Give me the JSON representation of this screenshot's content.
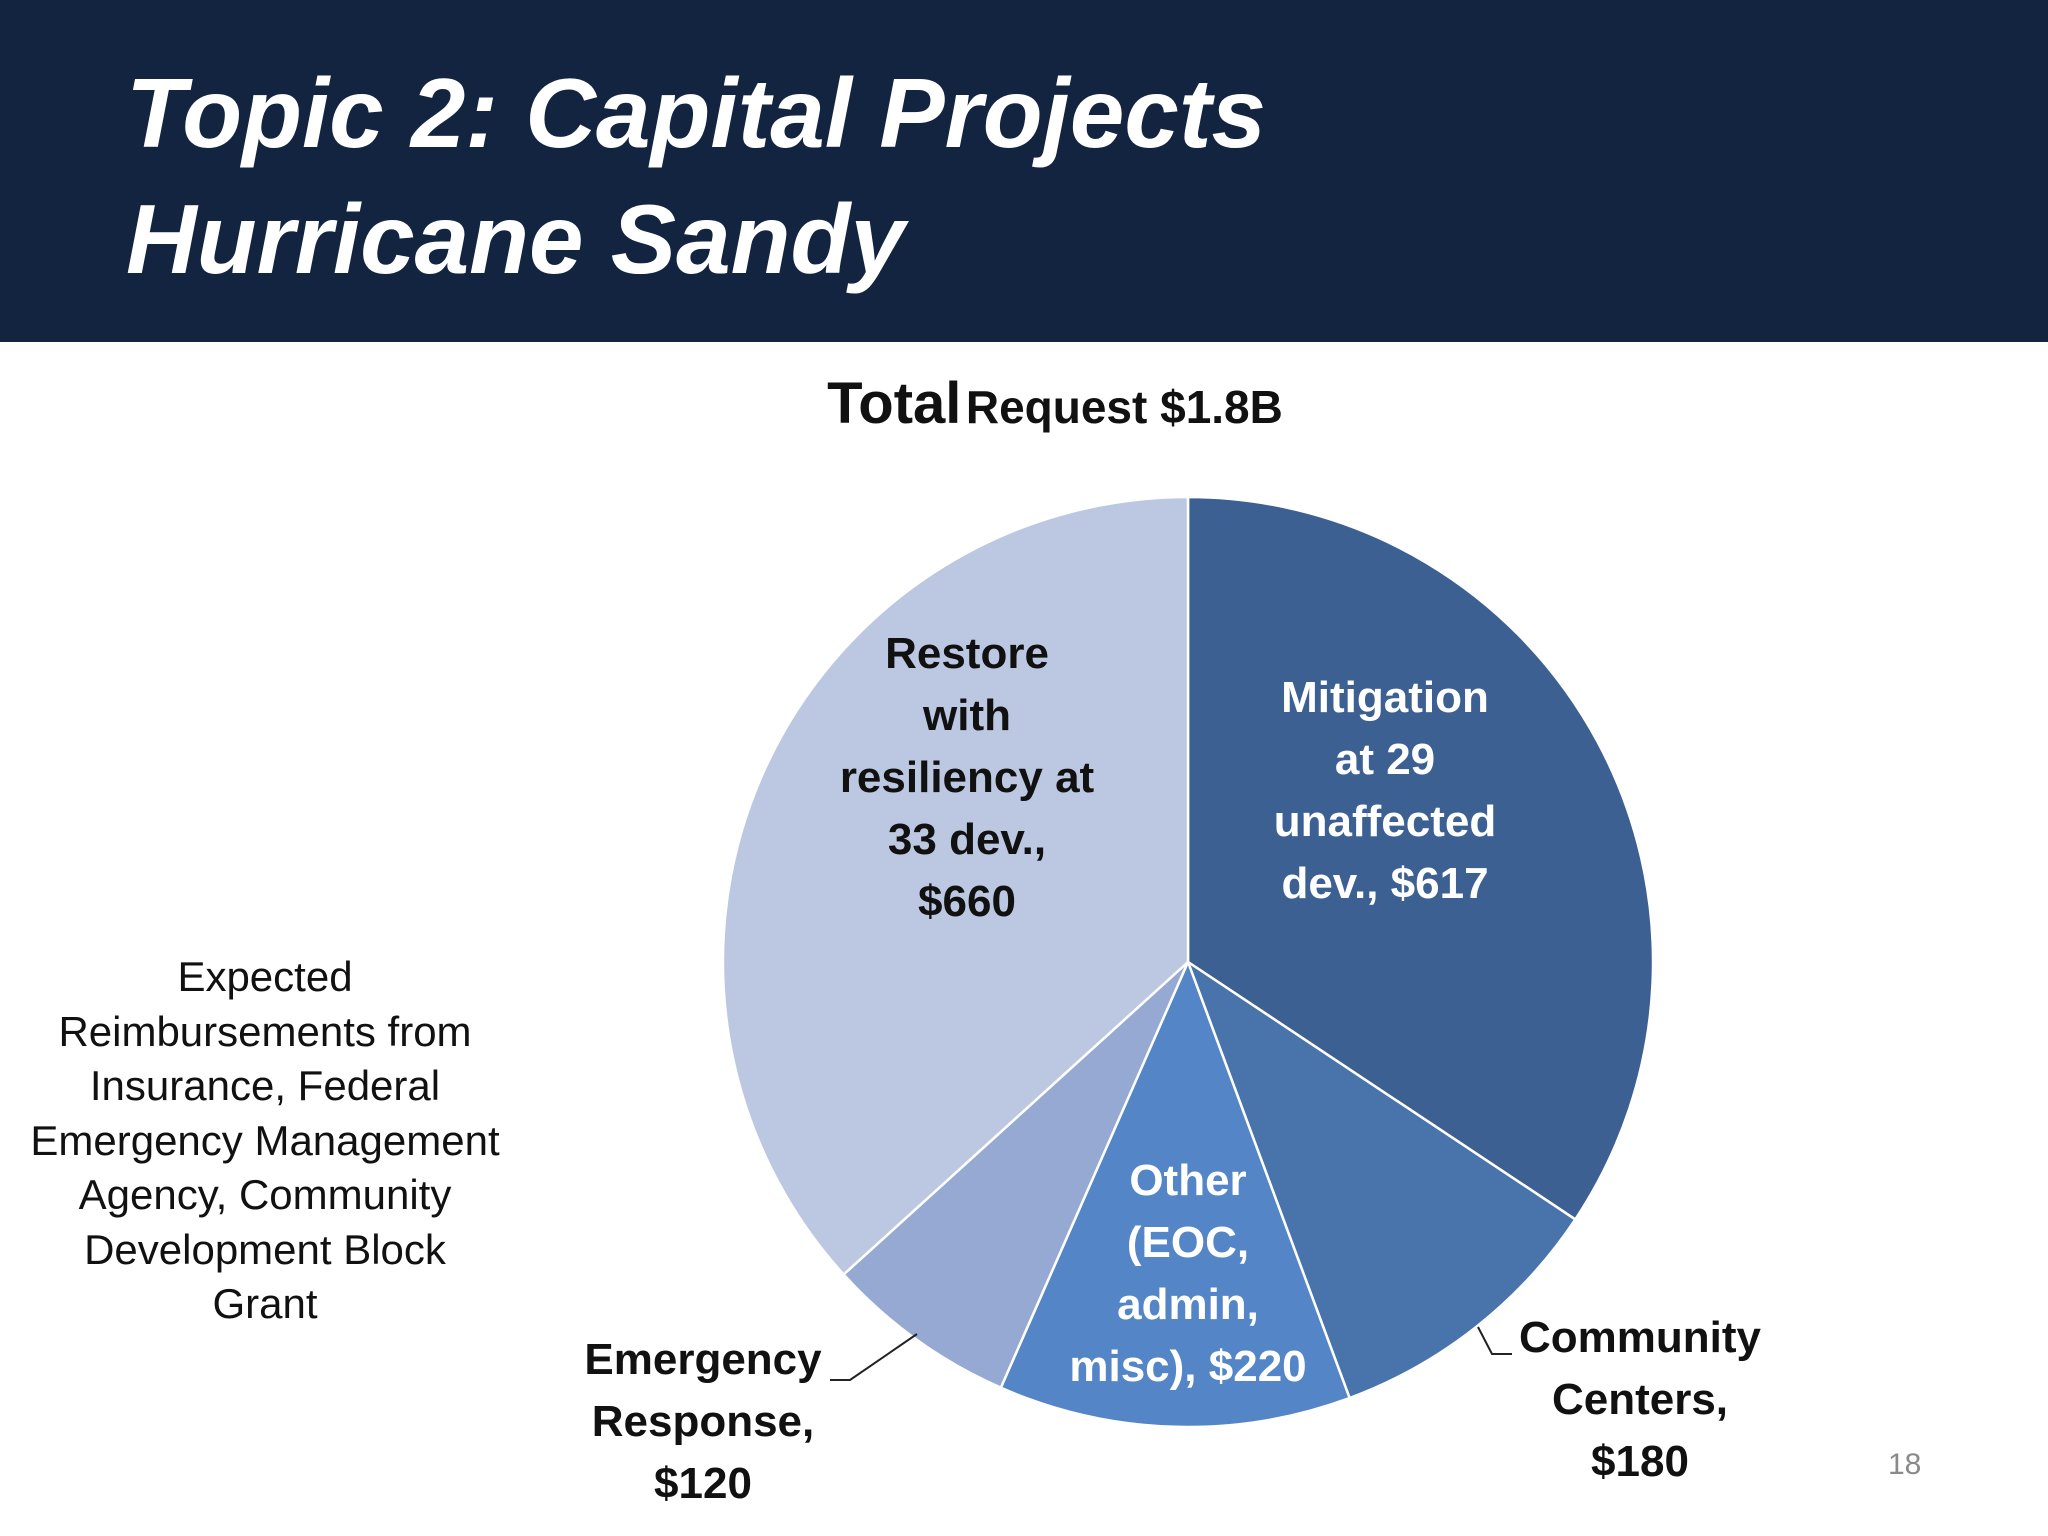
{
  "slide": {
    "title_line1": "Topic 2: Capital Projects",
    "title_line2": "Hurricane Sandy",
    "side_note": "Expected Reimbursements from Insurance, Federal Emergency Management Agency, Community Development Block Grant",
    "page_number": "18"
  },
  "chart_data": {
    "type": "pie",
    "title_part1": "Total",
    "title_part2": "Request $1.8B",
    "slices": [
      {
        "name": "Mitigation at 29 unaffected dev.",
        "value": 617,
        "color": "#3d6093",
        "label_color": "#ffffff",
        "label_lines": [
          "Mitigation",
          "at 29",
          "unaffected",
          "dev.,  $617"
        ]
      },
      {
        "name": "Community Centers",
        "value": 180,
        "color": "#4874ab",
        "label_color": "#111111",
        "label_lines": [
          "Community",
          "Centers,",
          "$180"
        ]
      },
      {
        "name": "Other (EOC, admin, misc)",
        "value": 220,
        "color": "#5485c6",
        "label_color": "#ffffff",
        "label_lines": [
          "Other",
          "(EOC,",
          "admin,",
          "misc),  $220"
        ]
      },
      {
        "name": "Emergency Response",
        "value": 120,
        "color": "#95a9d2",
        "label_color": "#111111",
        "label_lines": [
          "Emergency",
          "Response,",
          "$120"
        ]
      },
      {
        "name": "Restore with resiliency at 33 dev.",
        "value": 660,
        "color": "#bcc8e1",
        "label_color": "#111111",
        "label_lines": [
          "Restore",
          "with",
          "resiliency at",
          "33 dev.,",
          "$660"
        ]
      }
    ]
  }
}
